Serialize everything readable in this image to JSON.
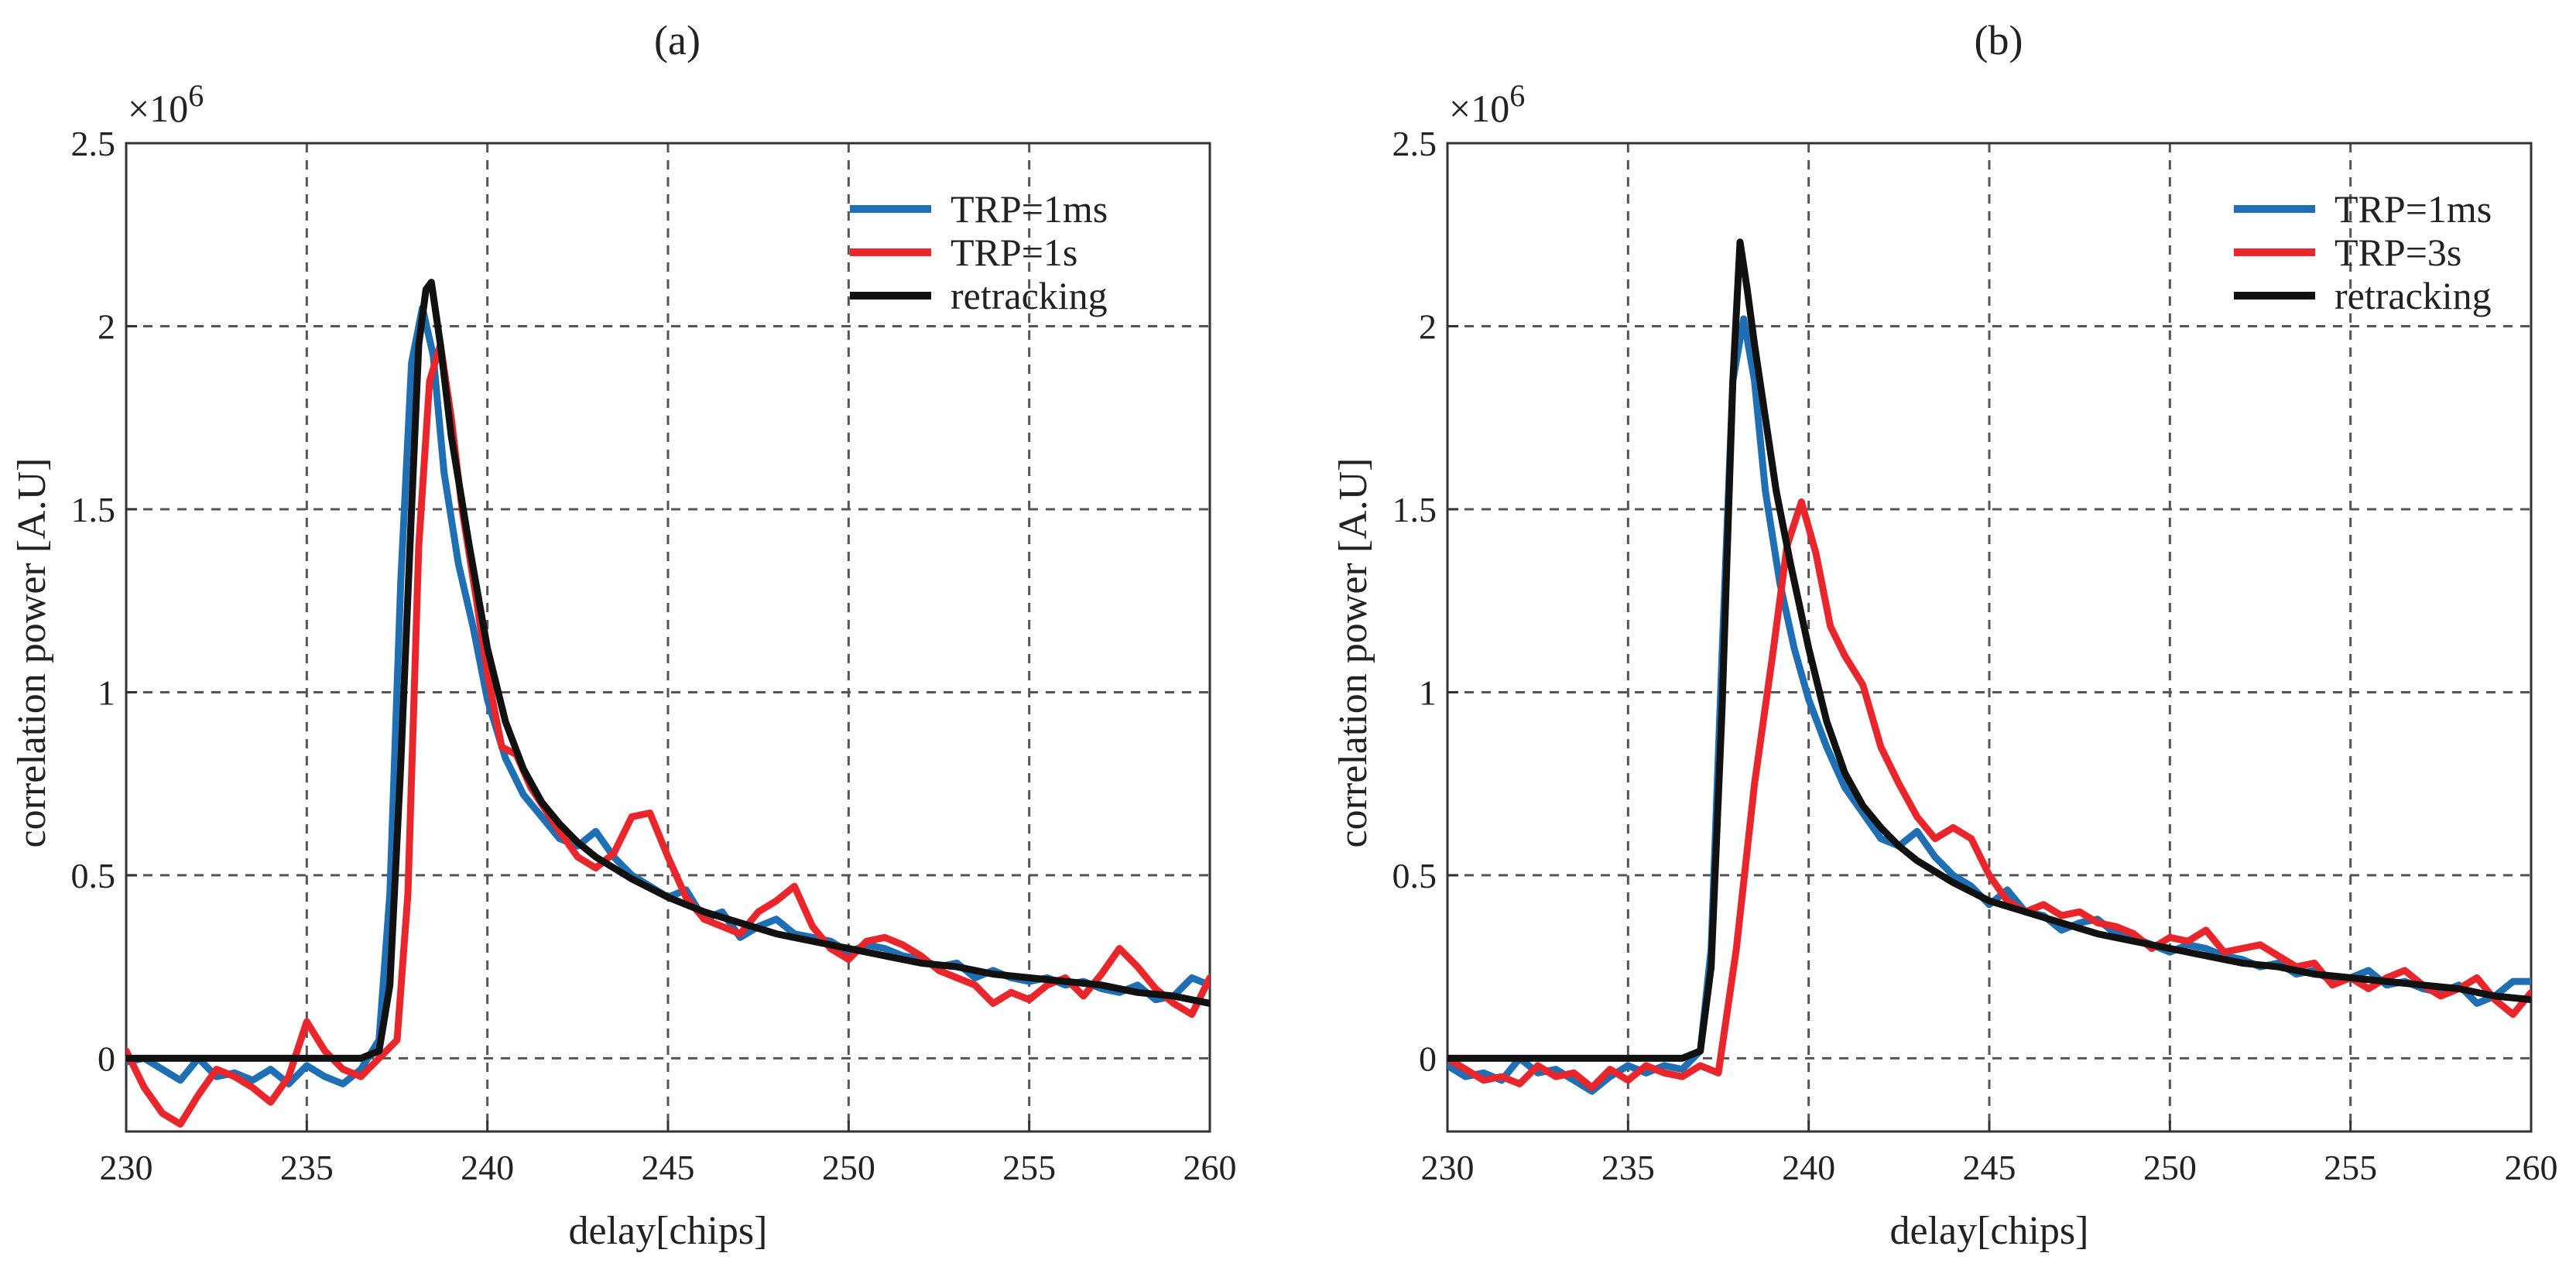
{
  "chart_data": [
    {
      "type": "line",
      "title": "(a)",
      "xlabel": "delay[chips]",
      "ylabel": "correlation power [A.U]",
      "y_multiplier": "×10^6",
      "y_multiplier_base": "×10",
      "y_multiplier_exp": "6",
      "xlim": [
        230,
        260
      ],
      "ylim": [
        -0.2,
        2.5
      ],
      "xticks": [
        230,
        235,
        240,
        245,
        250,
        255,
        260
      ],
      "yticks": [
        0,
        0.5,
        1,
        1.5,
        2,
        2.5
      ],
      "xtick_labels": [
        "230",
        "235",
        "240",
        "245",
        "250",
        "255",
        "260"
      ],
      "ytick_labels": [
        "0",
        "0.5",
        "1",
        "1.5",
        "2",
        "2.5"
      ],
      "grid": true,
      "legend_position": "top-right",
      "series": [
        {
          "name": "TRP=1ms",
          "color": "#1f6fb4",
          "x": [
            230,
            230.5,
            231,
            231.5,
            232,
            232.5,
            233,
            233.5,
            234,
            234.5,
            235,
            235.5,
            236,
            236.5,
            237,
            237.3,
            237.6,
            237.9,
            238.2,
            238.5,
            238.8,
            239.2,
            239.6,
            240,
            240.5,
            241,
            241.5,
            242,
            242.5,
            243,
            243.5,
            244,
            244.5,
            245,
            245.5,
            246,
            246.5,
            247,
            247.5,
            248,
            248.5,
            249,
            249.5,
            250,
            250.5,
            251,
            251.5,
            252,
            252.5,
            253,
            253.5,
            254,
            254.5,
            255,
            255.5,
            256,
            256.5,
            257,
            257.5,
            258,
            258.5,
            259,
            259.5,
            260
          ],
          "values": [
            -0.01,
            0.0,
            -0.03,
            -0.06,
            0.0,
            -0.05,
            -0.04,
            -0.06,
            -0.03,
            -0.07,
            -0.02,
            -0.05,
            -0.07,
            -0.03,
            0.05,
            0.45,
            1.3,
            1.9,
            2.05,
            1.92,
            1.6,
            1.35,
            1.18,
            0.98,
            0.82,
            0.72,
            0.66,
            0.6,
            0.58,
            0.62,
            0.55,
            0.5,
            0.47,
            0.44,
            0.46,
            0.38,
            0.4,
            0.33,
            0.36,
            0.38,
            0.34,
            0.33,
            0.32,
            0.29,
            0.31,
            0.3,
            0.28,
            0.27,
            0.25,
            0.26,
            0.22,
            0.24,
            0.22,
            0.21,
            0.22,
            0.2,
            0.21,
            0.19,
            0.18,
            0.2,
            0.16,
            0.17,
            0.22,
            0.2
          ]
        },
        {
          "name": "TRP=1s",
          "color": "#e8262b",
          "x": [
            230,
            230.5,
            231,
            231.5,
            232,
            232.5,
            233,
            233.5,
            234,
            234.5,
            235,
            235.5,
            236,
            236.5,
            237,
            237.5,
            237.8,
            238.1,
            238.4,
            238.7,
            239,
            239.3,
            239.7,
            240,
            240.4,
            240.8,
            241.2,
            241.6,
            242,
            242.5,
            243,
            243.5,
            244,
            244.5,
            245,
            245.5,
            246,
            246.5,
            247,
            247.5,
            248,
            248.5,
            249,
            249.5,
            250,
            250.5,
            251,
            251.5,
            252,
            252.5,
            253,
            253.5,
            254,
            254.5,
            255,
            255.5,
            256,
            256.5,
            257,
            257.5,
            258,
            258.5,
            259,
            259.5,
            260
          ],
          "values": [
            0.02,
            -0.08,
            -0.15,
            -0.18,
            -0.1,
            -0.03,
            -0.05,
            -0.08,
            -0.12,
            -0.05,
            0.1,
            0.02,
            -0.03,
            -0.05,
            0.0,
            0.05,
            0.45,
            1.4,
            1.85,
            1.95,
            1.75,
            1.5,
            1.25,
            1.05,
            0.85,
            0.83,
            0.74,
            0.68,
            0.62,
            0.55,
            0.52,
            0.56,
            0.66,
            0.67,
            0.55,
            0.44,
            0.38,
            0.36,
            0.34,
            0.4,
            0.43,
            0.47,
            0.36,
            0.3,
            0.27,
            0.32,
            0.33,
            0.31,
            0.28,
            0.24,
            0.22,
            0.2,
            0.15,
            0.18,
            0.16,
            0.2,
            0.22,
            0.17,
            0.23,
            0.3,
            0.25,
            0.19,
            0.15,
            0.12,
            0.22
          ]
        },
        {
          "name": "retracking",
          "color": "#111111",
          "x": [
            230,
            231,
            232,
            233,
            234,
            235,
            236,
            236.5,
            237,
            237.3,
            237.6,
            237.9,
            238.1,
            238.3,
            238.45,
            238.7,
            239,
            239.5,
            240,
            240.5,
            241,
            241.5,
            242,
            242.5,
            243,
            244,
            245,
            246,
            247,
            248,
            249,
            250,
            251,
            252,
            253,
            254,
            255,
            256,
            257,
            258,
            259,
            260
          ],
          "values": [
            0.0,
            0.0,
            0.0,
            0.0,
            0.0,
            0.0,
            0.0,
            0.0,
            0.02,
            0.2,
            0.8,
            1.5,
            1.95,
            2.1,
            2.12,
            1.95,
            1.7,
            1.4,
            1.12,
            0.92,
            0.79,
            0.7,
            0.64,
            0.59,
            0.55,
            0.49,
            0.44,
            0.4,
            0.37,
            0.34,
            0.32,
            0.3,
            0.28,
            0.26,
            0.25,
            0.23,
            0.22,
            0.21,
            0.2,
            0.18,
            0.17,
            0.15
          ]
        }
      ]
    },
    {
      "type": "line",
      "title": "(b)",
      "xlabel": "delay[chips]",
      "ylabel": "correlation power [A.U]",
      "y_multiplier": "×10^6",
      "y_multiplier_base": "×10",
      "y_multiplier_exp": "6",
      "xlim": [
        230,
        260
      ],
      "ylim": [
        -0.2,
        2.5
      ],
      "xticks": [
        230,
        235,
        240,
        245,
        250,
        255,
        260
      ],
      "yticks": [
        0,
        0.5,
        1,
        1.5,
        2,
        2.5
      ],
      "xtick_labels": [
        "230",
        "235",
        "240",
        "245",
        "250",
        "255",
        "260"
      ],
      "ytick_labels": [
        "0",
        "0.5",
        "1",
        "1.5",
        "2",
        "2.5"
      ],
      "grid": true,
      "legend_position": "top-right",
      "series": [
        {
          "name": "TRP=1ms",
          "color": "#1f6fb4",
          "x": [
            230,
            230.5,
            231,
            231.5,
            232,
            232.5,
            233,
            233.5,
            234,
            234.5,
            235,
            235.5,
            236,
            236.5,
            237,
            237.3,
            237.6,
            237.9,
            238.2,
            238.5,
            238.8,
            239.2,
            239.6,
            240,
            240.5,
            241,
            241.5,
            242,
            242.5,
            243,
            243.5,
            244,
            244.5,
            245,
            245.5,
            246,
            246.5,
            247,
            247.5,
            248,
            248.5,
            249,
            249.5,
            250,
            250.5,
            251,
            251.5,
            252,
            252.5,
            253,
            253.5,
            254,
            254.5,
            255,
            255.5,
            256,
            256.5,
            257,
            257.5,
            258,
            258.5,
            259,
            259.5,
            260
          ],
          "values": [
            -0.02,
            -0.05,
            -0.04,
            -0.06,
            0.0,
            -0.04,
            -0.03,
            -0.06,
            -0.09,
            -0.05,
            -0.02,
            -0.04,
            -0.02,
            -0.03,
            0.02,
            0.3,
            1.1,
            1.85,
            2.02,
            1.85,
            1.55,
            1.3,
            1.12,
            0.98,
            0.85,
            0.74,
            0.67,
            0.6,
            0.58,
            0.62,
            0.55,
            0.5,
            0.47,
            0.42,
            0.46,
            0.4,
            0.39,
            0.35,
            0.37,
            0.38,
            0.34,
            0.33,
            0.31,
            0.29,
            0.31,
            0.3,
            0.28,
            0.27,
            0.25,
            0.26,
            0.23,
            0.24,
            0.21,
            0.22,
            0.24,
            0.2,
            0.21,
            0.19,
            0.18,
            0.2,
            0.15,
            0.17,
            0.21,
            0.21
          ]
        },
        {
          "name": "TRP=3s",
          "color": "#e8262b",
          "x": [
            230,
            230.5,
            231,
            231.5,
            232,
            232.5,
            233,
            233.5,
            234,
            234.5,
            235,
            235.5,
            236,
            236.5,
            237,
            237.5,
            238,
            238.5,
            239,
            239.4,
            239.8,
            240.2,
            240.6,
            241,
            241.5,
            242,
            242.5,
            243,
            243.5,
            244,
            244.5,
            245,
            245.5,
            246,
            246.5,
            247,
            247.5,
            248,
            248.5,
            249,
            249.5,
            250,
            250.5,
            251,
            251.5,
            252,
            252.5,
            253,
            253.5,
            254,
            254.5,
            255,
            255.5,
            256,
            256.5,
            257,
            257.5,
            258,
            258.5,
            259,
            259.5,
            260
          ],
          "values": [
            0.0,
            -0.03,
            -0.06,
            -0.05,
            -0.07,
            -0.02,
            -0.05,
            -0.04,
            -0.08,
            -0.03,
            -0.06,
            -0.02,
            -0.04,
            -0.05,
            -0.02,
            -0.04,
            0.3,
            0.75,
            1.1,
            1.4,
            1.52,
            1.38,
            1.18,
            1.1,
            1.02,
            0.85,
            0.75,
            0.66,
            0.6,
            0.63,
            0.6,
            0.5,
            0.43,
            0.4,
            0.42,
            0.39,
            0.4,
            0.37,
            0.36,
            0.34,
            0.3,
            0.33,
            0.32,
            0.35,
            0.29,
            0.3,
            0.31,
            0.28,
            0.25,
            0.26,
            0.2,
            0.22,
            0.19,
            0.22,
            0.24,
            0.2,
            0.17,
            0.19,
            0.22,
            0.16,
            0.12,
            0.18
          ]
        },
        {
          "name": "retracking",
          "color": "#111111",
          "x": [
            230,
            231,
            232,
            233,
            234,
            235,
            236,
            236.5,
            237,
            237.3,
            237.6,
            237.9,
            238.1,
            238.3,
            238.5,
            238.8,
            239.1,
            239.5,
            240,
            240.5,
            241,
            241.5,
            242,
            242.5,
            243,
            244,
            245,
            246,
            247,
            248,
            249,
            250,
            251,
            252,
            253,
            254,
            255,
            256,
            257,
            258,
            259,
            260
          ],
          "values": [
            0.0,
            0.0,
            0.0,
            0.0,
            0.0,
            0.0,
            0.0,
            0.0,
            0.02,
            0.25,
            0.95,
            1.85,
            2.23,
            2.1,
            1.95,
            1.75,
            1.55,
            1.35,
            1.12,
            0.92,
            0.78,
            0.69,
            0.63,
            0.58,
            0.54,
            0.48,
            0.43,
            0.4,
            0.37,
            0.34,
            0.32,
            0.3,
            0.28,
            0.26,
            0.25,
            0.23,
            0.22,
            0.21,
            0.2,
            0.19,
            0.17,
            0.16
          ]
        }
      ]
    }
  ]
}
